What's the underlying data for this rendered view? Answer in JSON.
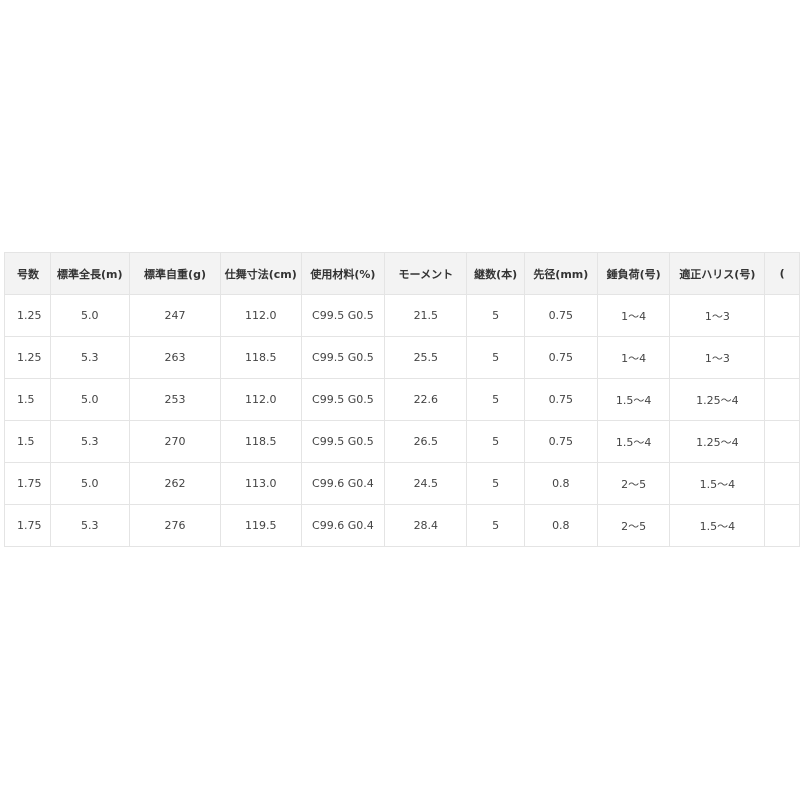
{
  "table": {
    "headers": [
      "号数",
      "標準全長(m)",
      "標準自重(g)",
      "仕舞寸法(cm)",
      "使用材料(%)",
      "モーメント",
      "継数(本)",
      "先径(mm)",
      "錘負荷(号)",
      "適正ハリス(号)",
      "("
    ],
    "rows": [
      [
        "1.25",
        "5.0",
        "247",
        "112.0",
        "C99.5 G0.5",
        "21.5",
        "5",
        "0.75",
        "1～4",
        "1～3",
        ""
      ],
      [
        "1.25",
        "5.3",
        "263",
        "118.5",
        "C99.5 G0.5",
        "25.5",
        "5",
        "0.75",
        "1～4",
        "1～3",
        ""
      ],
      [
        "1.5",
        "5.0",
        "253",
        "112.0",
        "C99.5 G0.5",
        "22.6",
        "5",
        "0.75",
        "1.5～4",
        "1.25～4",
        ""
      ],
      [
        "1.5",
        "5.3",
        "270",
        "118.5",
        "C99.5 G0.5",
        "26.5",
        "5",
        "0.75",
        "1.5～4",
        "1.25～4",
        ""
      ],
      [
        "1.75",
        "5.0",
        "262",
        "113.0",
        "C99.6 G0.4",
        "24.5",
        "5",
        "0.8",
        "2～5",
        "1.5～4",
        ""
      ],
      [
        "1.75",
        "5.3",
        "276",
        "119.5",
        "C99.6 G0.4",
        "28.4",
        "5",
        "0.8",
        "2～5",
        "1.5～4",
        ""
      ]
    ]
  }
}
